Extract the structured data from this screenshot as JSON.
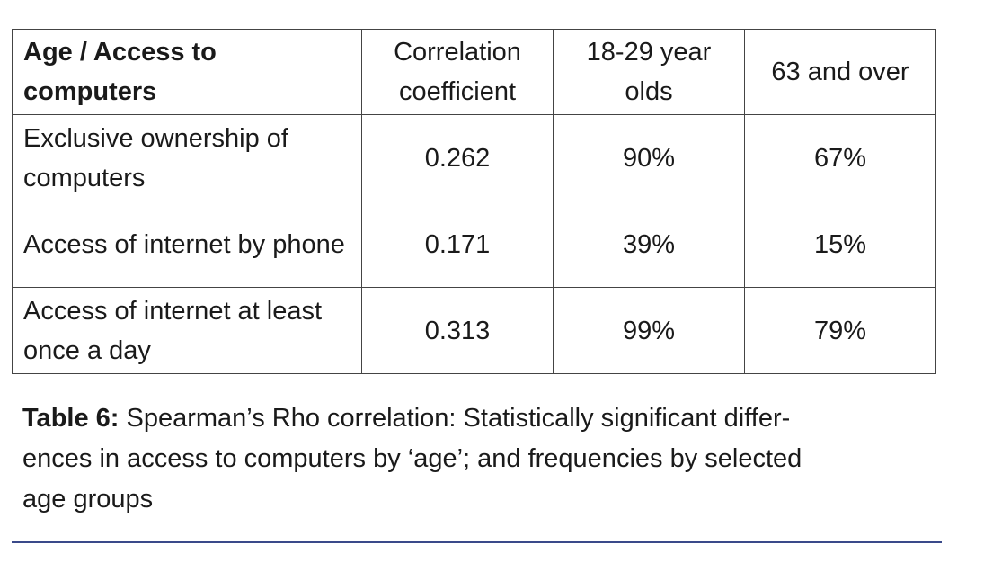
{
  "table": {
    "header": [
      "Age / Access to computers",
      "Correlation coefficient",
      "18-29 year olds",
      "63 and over"
    ],
    "rows": [
      [
        "Exclusive ownership of computers",
        "0.262",
        "90%",
        "67%"
      ],
      [
        "Access of internet by phone",
        "0.171",
        "39%",
        "15%"
      ],
      [
        "Access of internet at least once a day",
        "0.313",
        "99%",
        "79%"
      ]
    ]
  },
  "caption": {
    "label": "Table 6:",
    "lines": [
      "Spearman’s Rho correlation: Statistically significant differ-",
      "ences in access to computers by ‘age’; and frequencies by selected",
      "age groups"
    ]
  }
}
